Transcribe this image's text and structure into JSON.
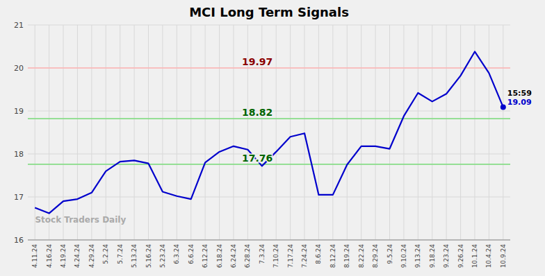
{
  "chart_data": {
    "type": "line",
    "title": "MCI Long Term Signals",
    "categories": [
      "4.11.24",
      "4.16.24",
      "4.19.24",
      "4.24.24",
      "4.29.24",
      "5.2.24",
      "5.7.24",
      "5.13.24",
      "5.16.24",
      "5.23.24",
      "6.3.24",
      "6.6.24",
      "6.12.24",
      "6.18.24",
      "6.24.24",
      "6.28.24",
      "7.3.24",
      "7.10.24",
      "7.17.24",
      "7.24.24",
      "8.6.24",
      "8.12.24",
      "8.19.24",
      "8.22.24",
      "8.29.24",
      "9.5.24",
      "9.10.24",
      "9.13.24",
      "9.18.24",
      "9.23.24",
      "9.26.24",
      "10.1.24",
      "10.4.24",
      "10.9.24"
    ],
    "values": [
      16.75,
      16.62,
      16.9,
      16.95,
      17.1,
      17.6,
      17.82,
      17.85,
      17.78,
      17.12,
      17.02,
      16.95,
      17.8,
      18.05,
      18.18,
      18.1,
      17.72,
      18.05,
      18.4,
      18.48,
      17.05,
      17.05,
      17.75,
      18.18,
      18.18,
      18.12,
      18.88,
      19.42,
      19.22,
      19.4,
      19.82,
      20.38,
      19.88,
      19.09
    ],
    "color": "#0000cc",
    "ylim": [
      16.0,
      21.0
    ],
    "yticks": [
      16,
      17,
      18,
      19,
      20,
      21
    ],
    "grid": true,
    "reference_lines": [
      {
        "value": 20.0,
        "label": "19.97",
        "color": "#ffb3b3",
        "label_color": "#8b0000"
      },
      {
        "value": 18.82,
        "label": "18.82",
        "color": "#88dd88",
        "label_color": "#006400"
      },
      {
        "value": 17.76,
        "label": "17.76",
        "color": "#88dd88",
        "label_color": "#006400"
      }
    ],
    "annotations": [
      "15:59",
      "19.09"
    ],
    "watermark": "Stock Traders Daily"
  }
}
